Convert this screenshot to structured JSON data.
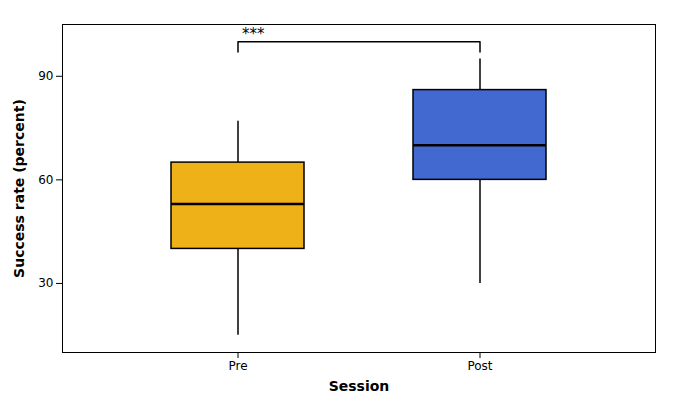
{
  "chart_data": {
    "type": "box",
    "xlabel": "Session",
    "ylabel": "Success rate (percent)",
    "categories": [
      "Pre",
      "Post"
    ],
    "whisker_low": [
      15,
      30
    ],
    "q1": [
      40,
      60
    ],
    "median": [
      53,
      70
    ],
    "q3": [
      65,
      86
    ],
    "whisker_high": [
      77,
      95
    ],
    "ylim": [
      10,
      105
    ],
    "yticks": [
      30,
      60,
      90
    ],
    "annotations": [
      {
        "text": "***",
        "between": [
          "Pre",
          "Post"
        ],
        "y": 100,
        "y_end": 97
      }
    ]
  }
}
